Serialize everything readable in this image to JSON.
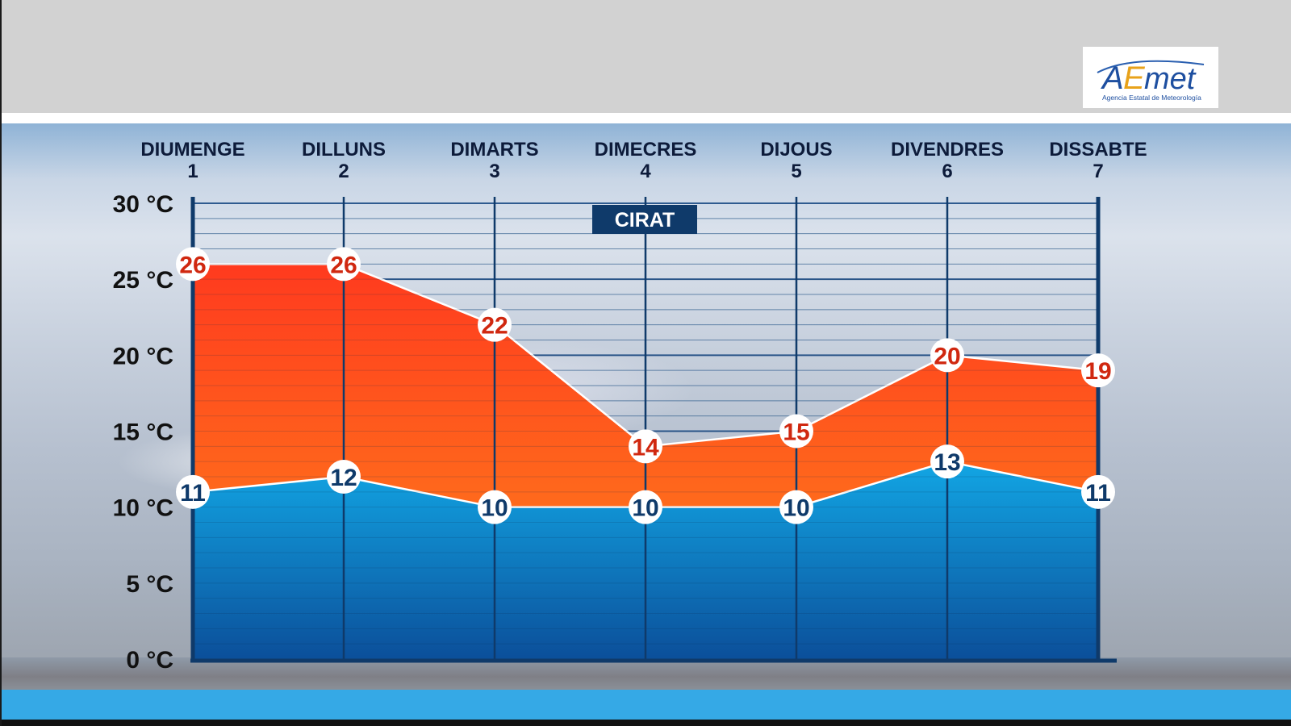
{
  "logo": {
    "brand_a": "A",
    "brand_e": "E",
    "brand_met": "met",
    "subtitle": "Agencia Estatal de Meteorología"
  },
  "colors": {
    "max_fill_top": "#ff3a1e",
    "max_fill_bottom": "#ff6a1c",
    "min_fill_top": "#12a6e4",
    "min_fill_bottom": "#0b4f9a",
    "axis": "#0f3a6a",
    "max_label": "#d02810",
    "min_label": "#0f3a6a"
  },
  "chart_data": {
    "type": "area",
    "location": "CIRAT",
    "categories": [
      {
        "day": "DIUMENGE",
        "num": "1"
      },
      {
        "day": "DILLUNS",
        "num": "2"
      },
      {
        "day": "DIMARTS",
        "num": "3"
      },
      {
        "day": "DIMECRES",
        "num": "4"
      },
      {
        "day": "DIJOUS",
        "num": "5"
      },
      {
        "day": "DIVENDRES",
        "num": "6"
      },
      {
        "day": "DISSABTE",
        "num": "7"
      }
    ],
    "series": [
      {
        "values": [
          26,
          26,
          22,
          14,
          15,
          20,
          19
        ],
        "color": "#ff3a1e"
      },
      {
        "values": [
          11,
          12,
          10,
          10,
          10,
          13,
          11
        ],
        "color": "#0b6fbf"
      }
    ],
    "ylim": [
      0,
      30
    ],
    "yticks": [
      {
        "value": 0,
        "label": "0 °C"
      },
      {
        "value": 5,
        "label": "5 °C"
      },
      {
        "value": 10,
        "label": "10 °C"
      },
      {
        "value": 15,
        "label": "15 °C"
      },
      {
        "value": 20,
        "label": "20 °C"
      },
      {
        "value": 25,
        "label": "25 °C"
      },
      {
        "value": 30,
        "label": "30 °C"
      }
    ],
    "minor_grid_step": 1,
    "major_grid_step": 5
  }
}
